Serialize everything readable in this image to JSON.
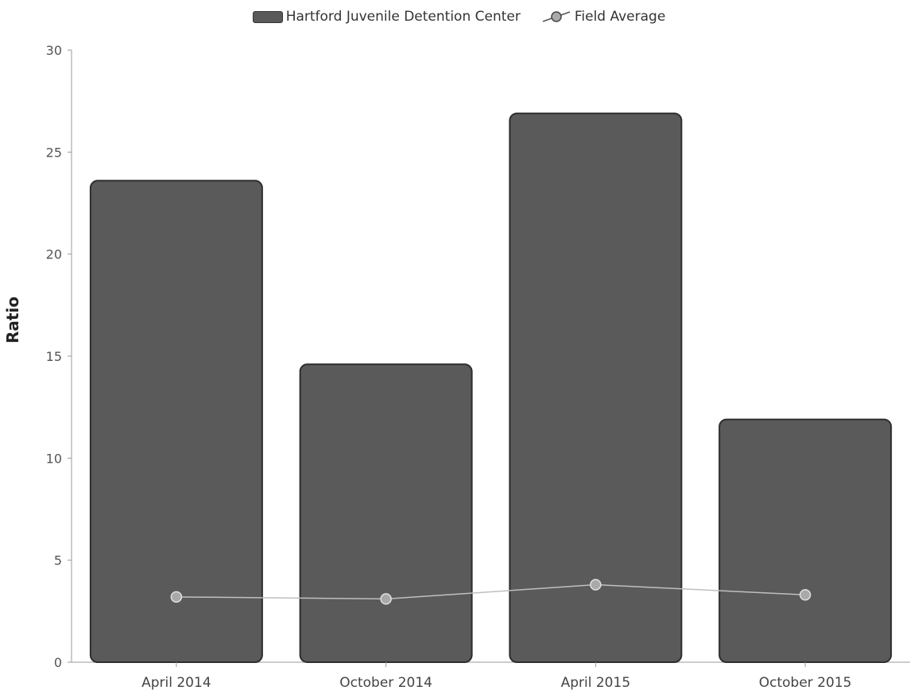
{
  "chart_data": {
    "type": "bar",
    "categories": [
      "April 2014",
      "October 2014",
      "April 2015",
      "October 2015"
    ],
    "series": [
      {
        "name": "Hartford Juvenile Detention Center",
        "type": "bar",
        "values": [
          23.6,
          14.6,
          26.9,
          11.9
        ]
      },
      {
        "name": "Field Average",
        "type": "line",
        "values": [
          3.2,
          3.1,
          3.8,
          3.3
        ]
      }
    ],
    "ylabel": "Ratio",
    "xlabel": "",
    "ylim": [
      0,
      30
    ],
    "yticks": [
      0,
      5,
      10,
      15,
      20,
      25,
      30
    ],
    "grid": false,
    "legend_position": "top-center",
    "colors": {
      "bar": "#5a5a5a",
      "bar_border": "#2e2e2e",
      "line": "#bfbfbf",
      "marker": "#a9a9a9",
      "axis": "#999999",
      "text": "#333333"
    }
  }
}
